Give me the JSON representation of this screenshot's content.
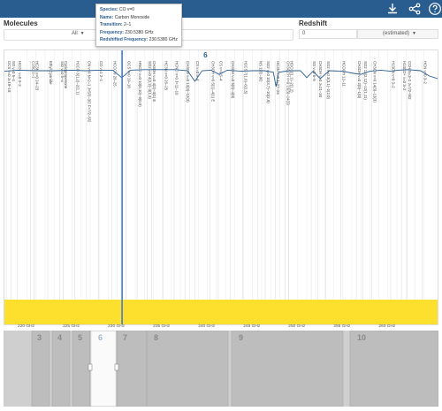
{
  "header": {
    "icons": [
      "download-icon",
      "share-icon",
      "help-icon"
    ]
  },
  "molecules": {
    "label": "Molecules",
    "selected": "All"
  },
  "redshift": {
    "label": "Redshift",
    "value": "0",
    "mode": "(estimated)"
  },
  "tooltip": {
    "species_label": "Species:",
    "species": "CO v=0",
    "name_label": "Name:",
    "name": "Carbon Monoxide",
    "transition_label": "Transition:",
    "transition": "2–1",
    "frequency_label": "Frequency:",
    "frequency": "230.5380 GHz",
    "redshifted_label": "Redshifted Frequency:",
    "redshifted": "230.5380 GHz"
  },
  "spectrum": {
    "band_top_label": "6",
    "xlim": [
      217.5,
      265.5
    ],
    "x_ticks": [
      {
        "value": 220,
        "label": "220 GHz"
      },
      {
        "value": 225,
        "label": "225 GHz"
      },
      {
        "value": 230,
        "label": "230 GHz"
      },
      {
        "value": 235,
        "label": "235 GHz"
      },
      {
        "value": 240,
        "label": "240 GHz"
      },
      {
        "value": 245,
        "label": "245 GHz"
      },
      {
        "value": 250,
        "label": "250 GHz"
      },
      {
        "value": 255,
        "label": "255 GHz"
      },
      {
        "value": 260,
        "label": "260 GHz"
      }
    ],
    "selected_frequency": 230.538,
    "lines": [
      {
        "freq": 217.7,
        "label": "OCS v=0 J=19–18"
      },
      {
        "freq": 218.2,
        "label": "SO v=0 5–4"
      },
      {
        "freq": 218.9,
        "label": "HCO+ v=0 3–2"
      },
      {
        "freq": 220.4,
        "label": "C18O 2–1"
      },
      {
        "freq": 220.8,
        "label": "HC3N v=0 24–23"
      },
      {
        "freq": 222.3,
        "label": "Ethyl Cyanide"
      },
      {
        "freq": 223.6,
        "label": "SiO v=0 5–4"
      },
      {
        "freq": 224.0,
        "label": "Cyclopropenone"
      },
      {
        "freq": 225.3,
        "label": "H2CO 3(1,2)–2(1,1)"
      },
      {
        "freq": 226.6,
        "label": "CN v=0 N=2–1 J=5/2–3/2 F=7/2–5/2"
      },
      {
        "freq": 227.9,
        "label": "CO v=1 2–1"
      },
      {
        "freq": 229.4,
        "label": "HCCCN 26–25"
      },
      {
        "freq": 231.0,
        "label": "OCS v=0 19–18"
      },
      {
        "freq": 232.2,
        "label": "HNCO v=0 10(0,10)–9(0,9)"
      },
      {
        "freq": 233.3,
        "label": "SO2 v=0 4(2,2)–3(1,3)"
      },
      {
        "freq": 233.8,
        "label": "CH3OH v=0 4(2)–3(1) E"
      },
      {
        "freq": 235.1,
        "label": "HC3N v=0 26–25"
      },
      {
        "freq": 236.3,
        "label": "HCNO v=0 J=11–10"
      },
      {
        "freq": 237.5,
        "label": "CH3CN v=0 13(3)–12(3)"
      },
      {
        "freq": 238.6,
        "label": "CS v=0 5–4"
      },
      {
        "freq": 240.3,
        "label": "CH3OH v=0 5(1)–4(1) E"
      },
      {
        "freq": 241.2,
        "label": "CS v=0 5–4"
      },
      {
        "freq": 242.5,
        "label": "CH3OH v=0 5(0)–4(0)"
      },
      {
        "freq": 243.9,
        "label": "H2CS 7(1,6)–6(1,5)"
      },
      {
        "freq": 245.6,
        "label": "NS 11/2–9/2"
      },
      {
        "freq": 246.4,
        "label": "SO2 v=0 10(3,7)–10(2,8)"
      },
      {
        "freq": 247.5,
        "label": "HC3N v=0 J=27–26"
      },
      {
        "freq": 248.6,
        "label": "CH3CCH v=0 15(3)–14(3)"
      },
      {
        "freq": 249.0,
        "label": "HDO 2(1,1)–2(1,2)"
      },
      {
        "freq": 251.5,
        "label": "SO v=0 6–5"
      },
      {
        "freq": 252.2,
        "label": "CH3OH v=0 J=21–20"
      },
      {
        "freq": 253.1,
        "label": "SO2 v=0 3(3,1)–2(2,0)"
      },
      {
        "freq": 254.8,
        "label": "HCOOH 12–11"
      },
      {
        "freq": 256.5,
        "label": "CH3OH v=0 2(0)–1(0)"
      },
      {
        "freq": 257.2,
        "label": "SO2 13(2,12)–12(1,11)"
      },
      {
        "freq": 258.2,
        "label": "CH3CN v=0 14(3)–13(3)"
      },
      {
        "freq": 260.3,
        "label": "H13CN v=0 3–2"
      },
      {
        "freq": 261.5,
        "label": "H13CO+ v=0 3–2"
      },
      {
        "freq": 262.1,
        "label": "CCH N=3–2 J=7/2–5/2"
      },
      {
        "freq": 263.8,
        "label": "HCN v=0 3–2"
      }
    ],
    "trace": [
      [
        217.5,
        0.06
      ],
      [
        219,
        0.04
      ],
      [
        221,
        0.05
      ],
      [
        223,
        0.05
      ],
      [
        225,
        0.04
      ],
      [
        226.5,
        0.05
      ],
      [
        228,
        0.04
      ],
      [
        229.5,
        0.04
      ],
      [
        230.5,
        0.18
      ],
      [
        231.5,
        0.04
      ],
      [
        233,
        0.03
      ],
      [
        235,
        0.03
      ],
      [
        236.5,
        0.03
      ],
      [
        237.8,
        0.05
      ],
      [
        238.6,
        0.25
      ],
      [
        239.4,
        0.05
      ],
      [
        240.4,
        0.04
      ],
      [
        241.3,
        0.12
      ],
      [
        242.2,
        0.04
      ],
      [
        243.8,
        0.06
      ],
      [
        245,
        0.05
      ],
      [
        246.3,
        0.05
      ],
      [
        247.3,
        0.08
      ],
      [
        247.6,
        0.35
      ],
      [
        247.9,
        0.08
      ],
      [
        249,
        0.05
      ],
      [
        250.3,
        0.05
      ],
      [
        251.0,
        0.18
      ],
      [
        251.7,
        0.06
      ],
      [
        252.5,
        0.2
      ],
      [
        253.5,
        0.05
      ],
      [
        255,
        0.06
      ],
      [
        256.2,
        0.1
      ],
      [
        257.0,
        0.12
      ],
      [
        258.0,
        0.06
      ],
      [
        259.2,
        0.04
      ],
      [
        260.3,
        0.06
      ],
      [
        261.1,
        0.04
      ],
      [
        262.3,
        0.03
      ],
      [
        263.6,
        0.05
      ],
      [
        264.6,
        0.15
      ],
      [
        265.5,
        0.2
      ]
    ]
  },
  "overview": {
    "xlim": [
      211,
      373
    ],
    "view_range": [
      227.5,
      234.5
    ],
    "bands": [
      {
        "label": "3",
        "start": 222.5,
        "end": 228
      },
      {
        "label": "4",
        "start": 229,
        "end": 237
      },
      {
        "label": "5",
        "start": 237.5,
        "end": 248
      },
      {
        "label": "6",
        "start": 251,
        "end": 271
      },
      {
        "label": "7",
        "start": 275,
        "end": 304
      },
      {
        "label": "8",
        "start": 310,
        "end": 354
      },
      {
        "label": "9",
        "start": 405,
        "end": 470
      },
      {
        "label": "10",
        "start": 493,
        "end": 560
      }
    ]
  }
}
